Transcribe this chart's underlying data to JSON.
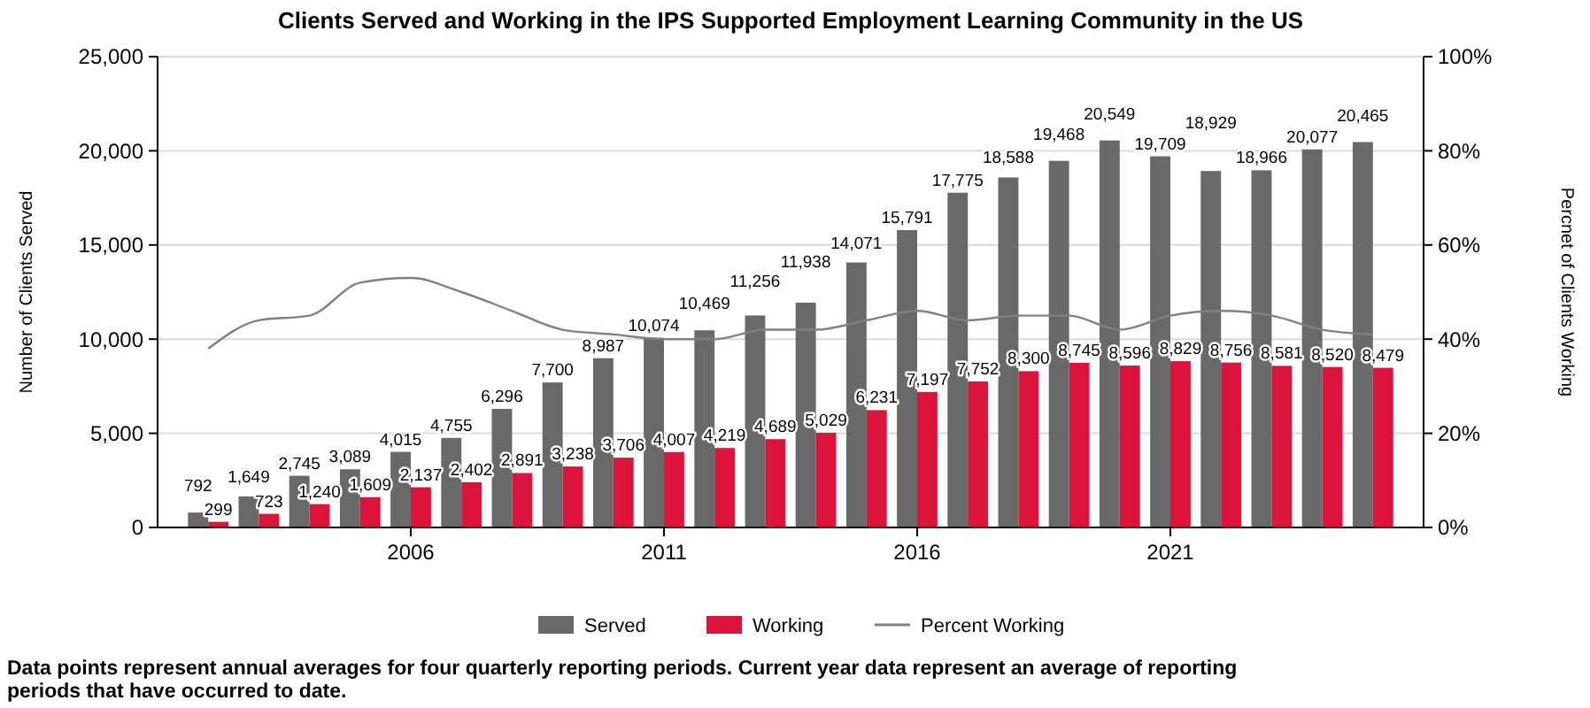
{
  "chart_data": {
    "type": "bar",
    "title": "Clients Served and Working in the IPS Supported Employment Learning Community in the US",
    "x": [
      2002,
      2003,
      2004,
      2005,
      2006,
      2007,
      2008,
      2009,
      2010,
      2011,
      2012,
      2013,
      2014,
      2015,
      2016,
      2017,
      2018,
      2019,
      2020,
      2021,
      2022,
      2023,
      2024,
      2025
    ],
    "series": [
      {
        "name": "Served",
        "color": "#696969",
        "values": [
          792,
          1649,
          2745,
          3089,
          4015,
          4755,
          6296,
          7700,
          8987,
          10074,
          10469,
          11256,
          11938,
          14071,
          15791,
          17775,
          18588,
          19468,
          20549,
          19709,
          18929,
          18966,
          20077,
          20465
        ],
        "value_labels": [
          "792",
          "1,649",
          "2,745",
          "3,089",
          "4,015",
          "4,755",
          "6,296",
          "7,700",
          "8,987",
          "10,074",
          "10,469",
          "11,256",
          "11,938",
          "14,071",
          "15,791",
          "17,775",
          "18,588",
          "19,468",
          "20,549",
          "19,709",
          "18,929",
          "18,966",
          "20,077",
          "20,465"
        ]
      },
      {
        "name": "Working",
        "color": "#dc143c",
        "values": [
          299,
          723,
          1240,
          1609,
          2137,
          2402,
          2891,
          3238,
          3706,
          4007,
          4219,
          4689,
          5029,
          6231,
          7197,
          7752,
          8300,
          8745,
          8596,
          8829,
          8756,
          8581,
          8520,
          8479
        ],
        "value_labels": [
          "299",
          "723",
          "1,240",
          "1,609",
          "2,137",
          "2,402",
          "2,891",
          "3,238",
          "3,706",
          "4,007",
          "4,219",
          "4,689",
          "5,029",
          "6,231",
          "7,197",
          "7,752",
          "8,300",
          "8,745",
          "8,596",
          "8,829",
          "8,756",
          "8,581",
          "8,520",
          "8,479"
        ]
      },
      {
        "name": "Percent Working",
        "type": "line",
        "axis": "y2",
        "color": "#808080",
        "values": [
          38,
          44,
          45,
          52,
          53,
          50,
          46,
          42,
          41,
          40,
          40,
          42,
          42,
          44,
          46,
          44,
          45,
          45,
          42,
          45,
          46,
          45,
          42,
          41
        ]
      }
    ],
    "xlim": [
      2001,
      2026
    ],
    "xticks": [
      2006,
      2011,
      2016,
      2021
    ],
    "ylim": [
      0,
      25000
    ],
    "yticks": [
      0,
      {
        "value": 5000,
        "label": "5,000"
      },
      {
        "value": 10000,
        "label": "10,000"
      },
      {
        "value": 15000,
        "label": "15,000"
      },
      {
        "value": 20000,
        "label": "20,000"
      },
      {
        "value": 25000,
        "label": "25,000"
      }
    ],
    "y2lim": [
      0,
      100
    ],
    "y2ticks": [
      {
        "value": 0,
        "label": "0%"
      },
      {
        "value": 20,
        "label": "20%"
      },
      {
        "value": 40,
        "label": "40%"
      },
      {
        "value": 60,
        "label": "60%"
      },
      {
        "value": 80,
        "label": "80%"
      },
      {
        "value": 100,
        "label": "100%"
      }
    ],
    "ylabel": "Number of Clients Served",
    "y2label": "Percnet of Clients Working",
    "grid": "y",
    "legend": "bottom",
    "annotations": [
      "Data points represent annual averages for four quarterly reporting periods. Current year data represent an average of reporting periods that have occurred to date."
    ]
  }
}
